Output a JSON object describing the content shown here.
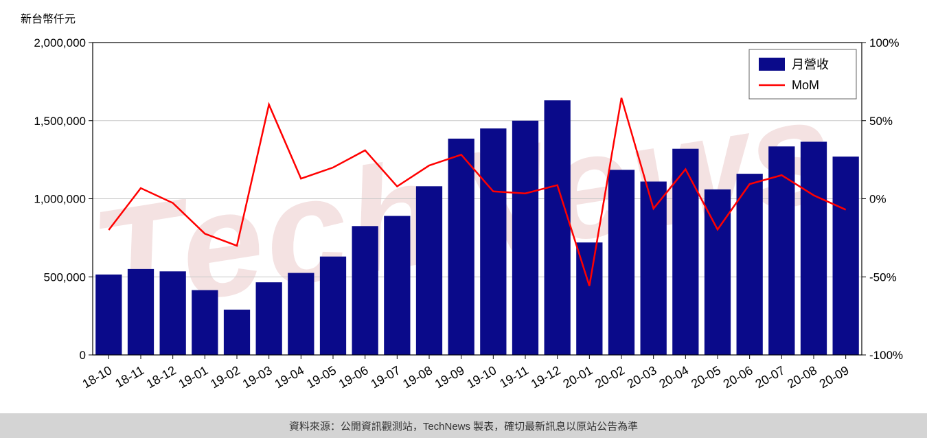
{
  "page": {
    "y_axis_title": "新台幣仟元",
    "watermark": "TechNews",
    "footer": "資料來源：公開資訊觀測站，TechNews 製表，確切最新訊息以原站公告為準"
  },
  "chart_data": {
    "type": "bar",
    "title": "",
    "xlabel": "",
    "ylabel": "新台幣仟元",
    "categories": [
      "18-10",
      "18-11",
      "18-12",
      "19-01",
      "19-02",
      "19-03",
      "19-04",
      "19-05",
      "19-06",
      "19-07",
      "19-08",
      "19-09",
      "19-10",
      "19-11",
      "19-12",
      "20-01",
      "20-02",
      "20-03",
      "20-04",
      "20-05",
      "20-06",
      "20-07",
      "20-08",
      "20-09"
    ],
    "series": [
      {
        "name": "月營收",
        "type": "bar",
        "axis": "left",
        "color": "#0a0a8a",
        "values": [
          515000,
          550000,
          535000,
          415000,
          290000,
          465000,
          525000,
          630000,
          825000,
          890000,
          1080000,
          1385000,
          1450000,
          1500000,
          1630000,
          720000,
          1185000,
          1110000,
          1320000,
          1060000,
          1160000,
          1335000,
          1365000,
          1270000
        ]
      },
      {
        "name": "MoM",
        "type": "line",
        "axis": "right",
        "color": "#ff0000",
        "values": [
          -20.0,
          6.8,
          -2.7,
          -22.4,
          -30.1,
          60.3,
          12.9,
          20.0,
          31.0,
          7.9,
          21.3,
          28.2,
          4.7,
          3.4,
          8.7,
          -55.8,
          64.6,
          -6.3,
          18.9,
          -19.7,
          9.4,
          15.1,
          2.2,
          -7.0
        ]
      }
    ],
    "left_axis": {
      "range": [
        0,
        2000000
      ],
      "ticks": [
        0,
        500000,
        1000000,
        1500000,
        2000000
      ]
    },
    "right_axis": {
      "range": [
        -100,
        100
      ],
      "ticks": [
        -100,
        -50,
        0,
        50,
        100
      ],
      "suffix": "%"
    },
    "legend": {
      "position": "top-right",
      "entries": [
        "月營收",
        "MoM"
      ]
    },
    "grid": true
  }
}
